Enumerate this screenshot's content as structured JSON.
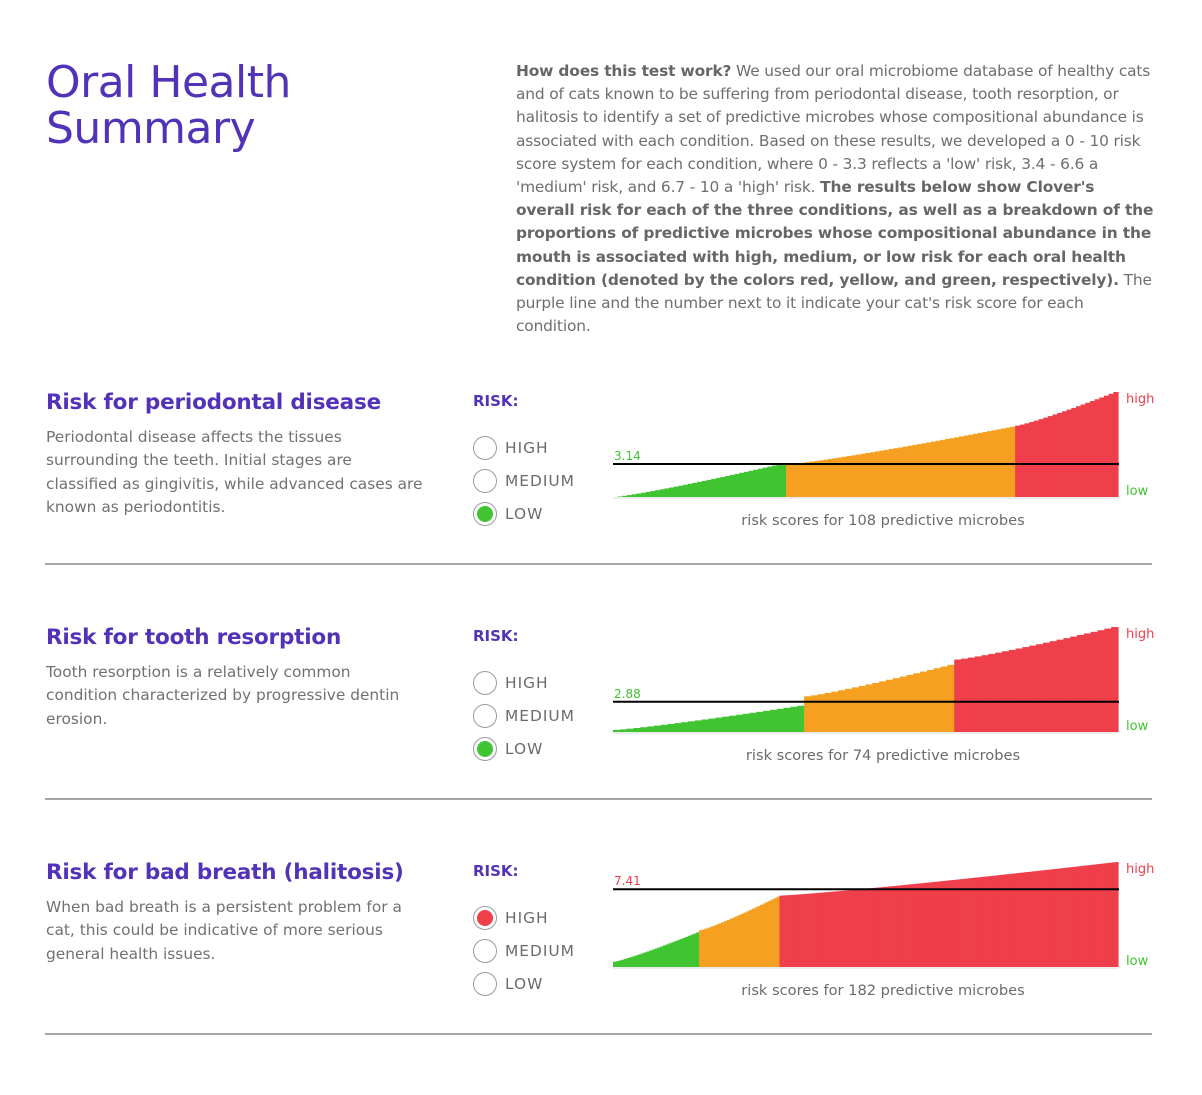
{
  "page_title": "Oral Health Summary",
  "intro": {
    "q": "How does this test work?",
    "p1": " We used our oral microbiome database of healthy cats and of cats known to be suffering from periodontal disease, tooth resorption, or halitosis to identify a set of predictive microbes whose compositional abundance is associated with each condition. Based on these results, we developed a 0 - 10 risk score system for each condition, where 0 - 3.3 reflects a 'low' risk, 3.4 - 6.6 a 'medium' risk, and 6.7 - 10 a 'high' risk. ",
    "bold": "The results below show Clover's overall risk for each of the three conditions, as well as a breakdown of the proportions of predictive microbes whose compositional abundance in the mouth is associated with high, medium, or low risk for each oral health condition (denoted by the colors red, yellow, and green, respectively).",
    "p2": " The purple line and the number next to it indicate your cat's risk score for each condition."
  },
  "risk_label": "RISK:",
  "risk_options": [
    "HIGH",
    "MEDIUM",
    "LOW"
  ],
  "axis_high": "high",
  "axis_low": "low",
  "colors": {
    "brand": "#5232b8",
    "low": "#40c432",
    "medium": "#f5a020",
    "high": "#ef3f4a",
    "score_line": "#000000"
  },
  "sections": [
    {
      "title": "Risk for periodontal disease",
      "description": "Periodontal disease affects the tissues surrounding the teeth. Initial stages are classified as gingivitis, while advanced cases are known as periodontitis.",
      "selected": "LOW",
      "caption": "risk scores for 108 predictive microbes"
    },
    {
      "title": "Risk for tooth resorption",
      "description": "Tooth resorption is a relatively common condition characterized by progressive dentin erosion.",
      "selected": "LOW",
      "caption": "risk scores for 74 predictive microbes"
    },
    {
      "title": "Risk for bad breath (halitosis)",
      "description": "When bad breath is a persistent problem for a cat, this could be indicative of more serious general health issues.",
      "selected": "HIGH",
      "caption": "risk scores for 182 predictive microbes"
    }
  ],
  "chart_data": [
    {
      "type": "bar",
      "title": "risk scores for 108 predictive microbes",
      "ylim": [
        0,
        10
      ],
      "score": 3.14,
      "score_label": "3.14",
      "microbe_count": 108,
      "segments": [
        {
          "level": "low",
          "count": 37,
          "from": 0.0,
          "to": 3.2
        },
        {
          "level": "medium",
          "count": 49,
          "from": 3.1,
          "to": 6.7
        },
        {
          "level": "high",
          "count": 22,
          "from": 6.8,
          "to": 10.0
        }
      ]
    },
    {
      "type": "bar",
      "title": "risk scores for 74 predictive microbes",
      "ylim": [
        0,
        10
      ],
      "score": 2.88,
      "score_label": "2.88",
      "microbe_count": 74,
      "segments": [
        {
          "level": "low",
          "count": 28,
          "from": 0.2,
          "to": 2.5
        },
        {
          "level": "medium",
          "count": 22,
          "from": 3.4,
          "to": 6.4
        },
        {
          "level": "high",
          "count": 24,
          "from": 6.9,
          "to": 10.0
        }
      ]
    },
    {
      "type": "bar",
      "title": "risk scores for 182 predictive microbes",
      "ylim": [
        0,
        10
      ],
      "score": 7.41,
      "score_label": "7.41",
      "microbe_count": 182,
      "segments": [
        {
          "level": "low",
          "count": 31,
          "from": 0.5,
          "to": 3.3
        },
        {
          "level": "medium",
          "count": 29,
          "from": 3.5,
          "to": 6.7
        },
        {
          "level": "high",
          "count": 122,
          "from": 6.8,
          "to": 10.0
        }
      ]
    }
  ]
}
